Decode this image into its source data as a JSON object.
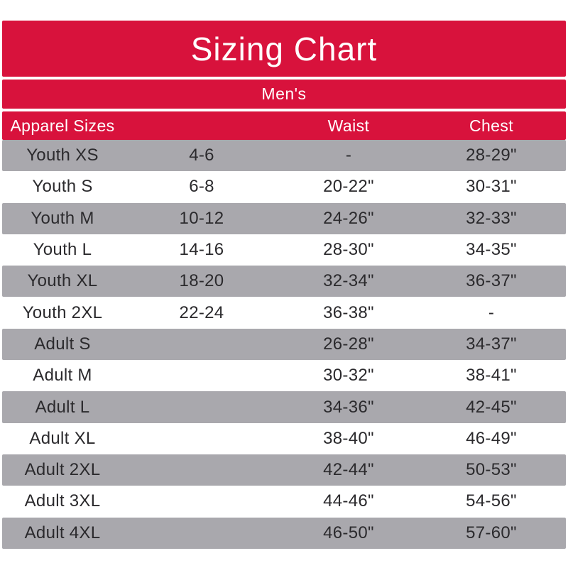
{
  "title": "Sizing Chart",
  "section_label": "Men's",
  "columns": [
    "Apparel Sizes",
    "",
    "Waist",
    "Chest"
  ],
  "rows": [
    {
      "label": "Youth XS",
      "size": "4-6",
      "waist": "-",
      "chest": "28-29\""
    },
    {
      "label": "Youth S",
      "size": "6-8",
      "waist": "20-22\"",
      "chest": "30-31\""
    },
    {
      "label": "Youth M",
      "size": "10-12",
      "waist": "24-26\"",
      "chest": "32-33\""
    },
    {
      "label": "Youth L",
      "size": "14-16",
      "waist": "28-30\"",
      "chest": "34-35\""
    },
    {
      "label": "Youth XL",
      "size": "18-20",
      "waist": "32-34\"",
      "chest": "36-37\""
    },
    {
      "label": "Youth 2XL",
      "size": "22-24",
      "waist": "36-38\"",
      "chest": "-"
    },
    {
      "label": "Adult S",
      "size": "",
      "waist": "26-28\"",
      "chest": "34-37\""
    },
    {
      "label": "Adult M",
      "size": "",
      "waist": "30-32\"",
      "chest": "38-41\""
    },
    {
      "label": "Adult L",
      "size": "",
      "waist": "34-36\"",
      "chest": "42-45\""
    },
    {
      "label": "Adult XL",
      "size": "",
      "waist": "38-40\"",
      "chest": "46-49\""
    },
    {
      "label": "Adult 2XL",
      "size": "",
      "waist": "42-44\"",
      "chest": "50-53\""
    },
    {
      "label": "Adult 3XL",
      "size": "",
      "waist": "44-46\"",
      "chest": "54-56\""
    },
    {
      "label": "Adult 4XL",
      "size": "",
      "waist": "46-50\"",
      "chest": "57-60\""
    }
  ],
  "colors": {
    "accent": "#d8123c",
    "row-gray": "#a9a8ad",
    "text-dark": "#2b2a2d",
    "text-light": "#ffffff"
  }
}
